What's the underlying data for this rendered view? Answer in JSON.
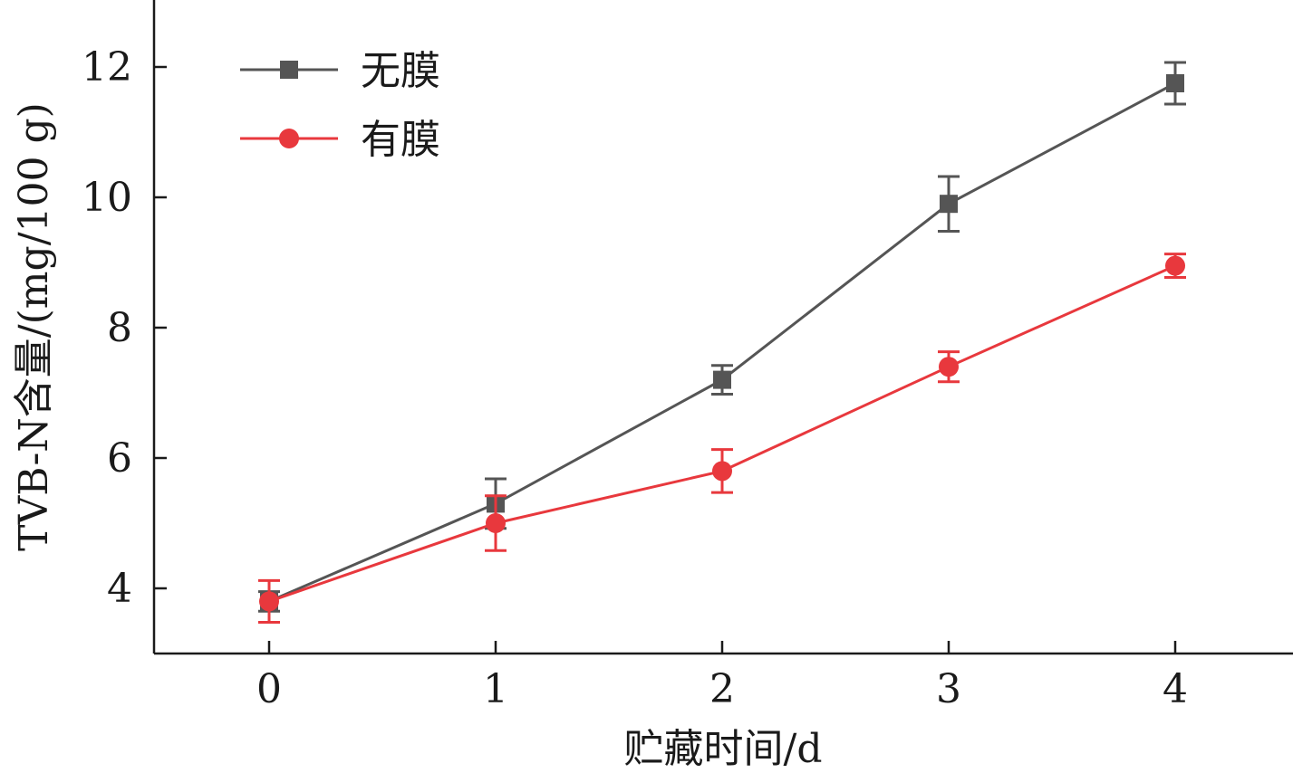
{
  "chart_data": {
    "type": "line",
    "x": [
      0,
      1,
      2,
      3,
      4
    ],
    "xlabel": "贮藏时间/d",
    "ylabel": "TVB-N含量/(mg/100 g)",
    "xlim": [
      -0.5,
      4.5
    ],
    "ylim": [
      3.0,
      13.0
    ],
    "xticks": [
      "0",
      "1",
      "2",
      "3",
      "4"
    ],
    "yticks": [
      "4",
      "6",
      "8",
      "10",
      "12"
    ],
    "grid": false,
    "legend_position": "top-left",
    "series": [
      {
        "name": "无膜",
        "marker": "square",
        "color": "#555555",
        "values": [
          3.8,
          5.3,
          7.2,
          9.9,
          11.75
        ],
        "errors": [
          0.15,
          0.38,
          0.22,
          0.42,
          0.32
        ]
      },
      {
        "name": "有膜",
        "marker": "circle",
        "color": "#e8383d",
        "values": [
          3.8,
          5.0,
          5.8,
          7.4,
          8.95
        ],
        "errors": [
          0.32,
          0.42,
          0.33,
          0.23,
          0.18
        ]
      }
    ]
  }
}
